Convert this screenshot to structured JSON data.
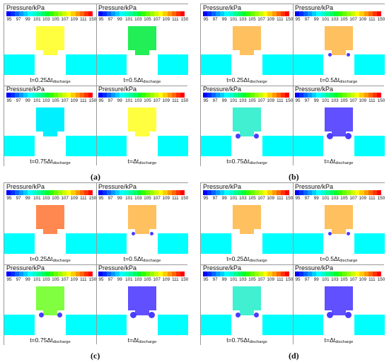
{
  "colorbar": {
    "title": "Pressure/kPa",
    "ticks": [
      "95",
      "97",
      "99",
      "101",
      "103",
      "105",
      "107",
      "109",
      "111",
      "150"
    ],
    "colors": [
      "#0000ff",
      "#0030ff",
      "#0066ff",
      "#0099ff",
      "#00ccff",
      "#00ffff",
      "#00ffcc",
      "#00ff99",
      "#00ff66",
      "#00ff33",
      "#33ff00",
      "#66ff00",
      "#99ff00",
      "#ccff00",
      "#ffff00",
      "#ffcc00",
      "#ff9900",
      "#ff6600",
      "#ff3300",
      "#ff0000"
    ]
  },
  "time_labels": {
    "t1": {
      "prefix": "t=0.25",
      "delta": "Δt",
      "sub": "discharge"
    },
    "t2": {
      "prefix": "t=0.5",
      "delta": "Δt",
      "sub": "discharge"
    },
    "t3": {
      "prefix": "t=0.75",
      "delta": "Δt",
      "sub": "discharge"
    },
    "t4": {
      "prefix": "t=",
      "delta": "Δt",
      "sub": "discharge"
    }
  },
  "groups": {
    "a": {
      "label": "(a)"
    },
    "b": {
      "label": "(b)"
    },
    "c": {
      "label": "(c)"
    },
    "d": {
      "label": "(d)"
    }
  },
  "panel_colors": {
    "a": [
      "#ffff40",
      "#22ee55",
      "#00f0ff",
      "#ffff40"
    ],
    "b": [
      "#ffc060",
      "#ffc060",
      "#40f0d0",
      "#6050ff"
    ],
    "c": [
      "#ff8850",
      "#ffc060",
      "#80ff40",
      "#6050ff"
    ],
    "d": [
      "#ffc060",
      "#ffc060",
      "#40f0d0",
      "#6050ff"
    ]
  }
}
